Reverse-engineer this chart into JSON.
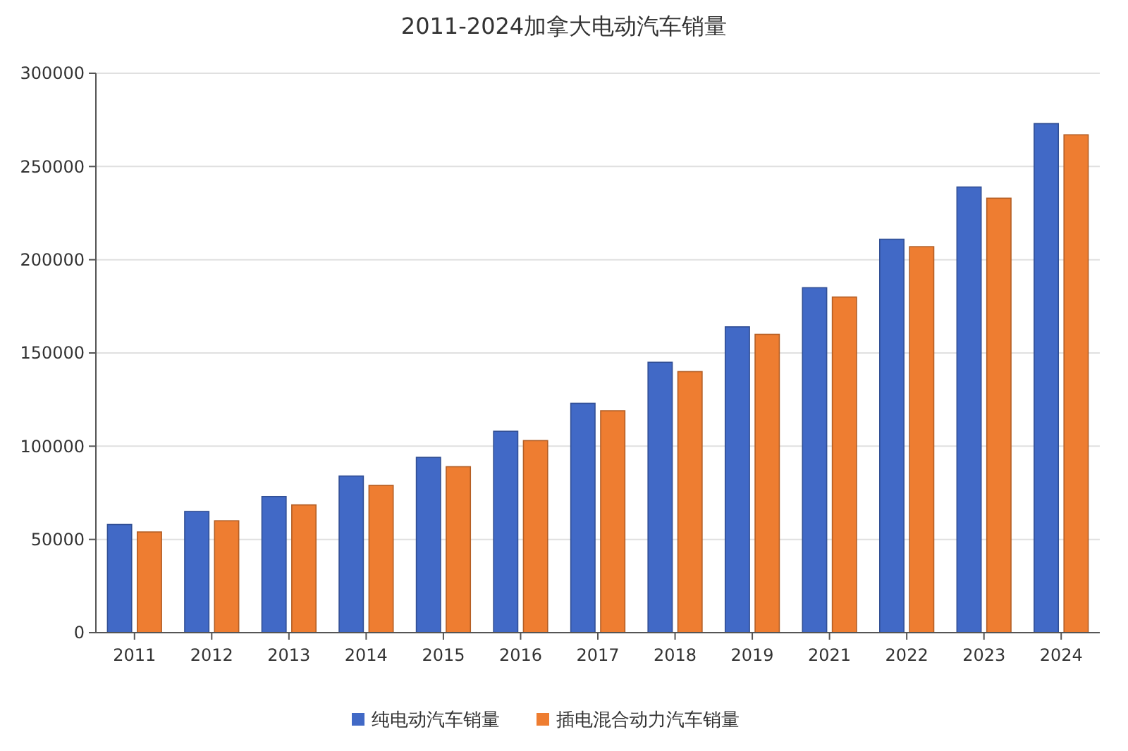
{
  "chart_data": {
    "type": "bar",
    "title": "2011-2024加拿大电动汽车销量",
    "categories": [
      "2011",
      "2012",
      "2013",
      "2014",
      "2015",
      "2016",
      "2017",
      "2018",
      "2019",
      "2021",
      "2022",
      "2023",
      "2024"
    ],
    "series": [
      {
        "name": "纯电动汽车销量",
        "color": "#4169c6",
        "values": [
          58000,
          65000,
          73000,
          84000,
          94000,
          108000,
          123000,
          145000,
          164000,
          185000,
          211000,
          239000,
          273000
        ]
      },
      {
        "name": "插电混合动力汽车销量",
        "color": "#ee7d31",
        "values": [
          54000,
          60000,
          68500,
          79000,
          89000,
          103000,
          119000,
          140000,
          160000,
          180000,
          207000,
          233000,
          267000
        ]
      }
    ],
    "ylim": [
      0,
      300000
    ],
    "yticks": [
      0,
      50000,
      100000,
      150000,
      200000,
      250000,
      300000
    ],
    "grid": "y",
    "legend": "bottom"
  }
}
